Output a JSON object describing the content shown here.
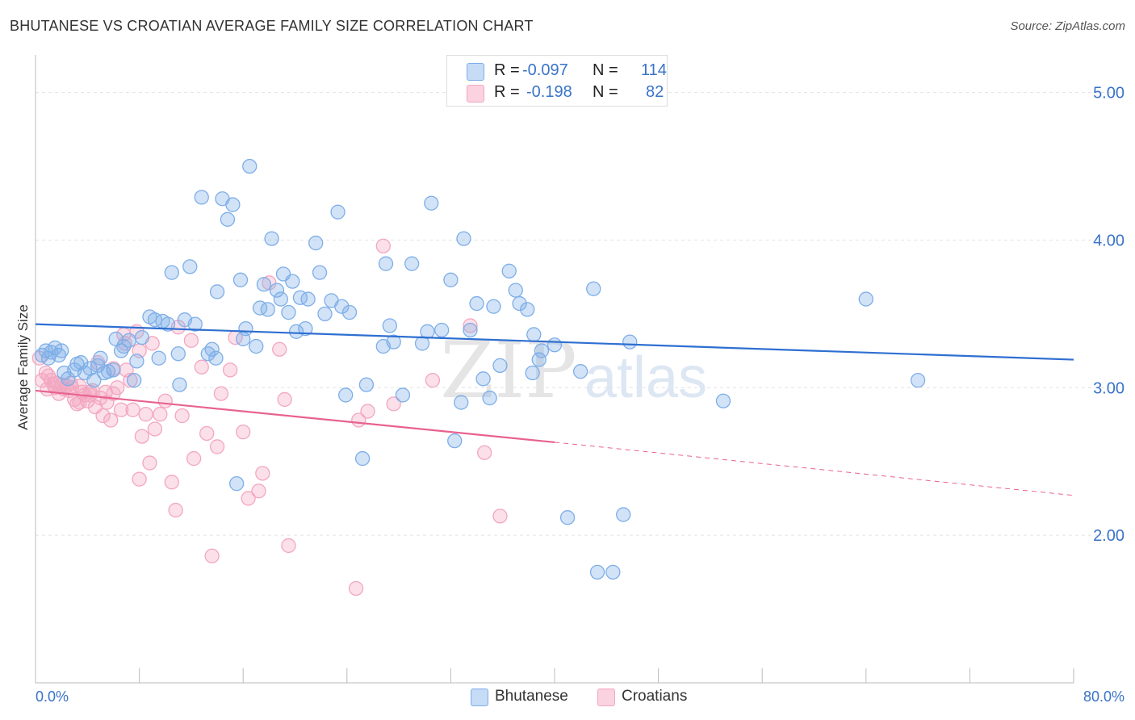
{
  "title": "BHUTANESE VS CROATIAN AVERAGE FAMILY SIZE CORRELATION CHART",
  "source": "Source: ZipAtlas.com",
  "watermark": {
    "zip": "ZIP",
    "atlas": "atlas"
  },
  "legend": {
    "rows": [
      {
        "r_label": "R =",
        "r_value": "-0.097",
        "n_label": "N =",
        "n_value": "114",
        "color": "#7eaee8"
      },
      {
        "r_label": "R =",
        "r_value": "-0.198",
        "n_label": "N =",
        "n_value": "82",
        "color": "#f3a6c0"
      }
    ]
  },
  "bottom_legend": {
    "blue": "Bhutanese",
    "pink": "Croatians"
  },
  "chart_data": {
    "type": "scatter",
    "ylabel": "Average Family Size",
    "x_min_label": "0.0%",
    "x_max_label": "80.0%",
    "xlim": [
      0,
      80
    ],
    "ylim": [
      1.0,
      5.2
    ],
    "y_ticks": [
      {
        "value": 2.0,
        "label": "2.00"
      },
      {
        "value": 3.0,
        "label": "3.00"
      },
      {
        "value": 4.0,
        "label": "4.00"
      },
      {
        "value": 5.0,
        "label": "5.00"
      }
    ],
    "colors": {
      "blue": "#7eaee8",
      "blue_line": "#2e6fd1",
      "pink": "#f3a6c0",
      "pink_line": "#e8628f"
    },
    "series": [
      {
        "name": "Bhutanese",
        "trend": {
          "x0": 0,
          "y0": 3.43,
          "x1": 80,
          "y1": 3.19
        },
        "points": [
          [
            0.5,
            3.22
          ],
          [
            0.8,
            3.25
          ],
          [
            1.0,
            3.2
          ],
          [
            1.2,
            3.24
          ],
          [
            1.5,
            3.27
          ],
          [
            2.0,
            3.25
          ],
          [
            1.8,
            3.22
          ],
          [
            2.2,
            3.1
          ],
          [
            2.5,
            3.06
          ],
          [
            3.0,
            3.12
          ],
          [
            3.2,
            3.16
          ],
          [
            3.5,
            3.17
          ],
          [
            3.8,
            3.1
          ],
          [
            4.2,
            3.13
          ],
          [
            4.5,
            3.05
          ],
          [
            4.8,
            3.15
          ],
          [
            5.0,
            3.2
          ],
          [
            5.3,
            3.1
          ],
          [
            5.6,
            3.11
          ],
          [
            6.0,
            3.12
          ],
          [
            6.2,
            3.33
          ],
          [
            6.6,
            3.25
          ],
          [
            6.8,
            3.28
          ],
          [
            7.2,
            3.32
          ],
          [
            7.6,
            3.05
          ],
          [
            7.8,
            3.18
          ],
          [
            8.2,
            3.34
          ],
          [
            8.8,
            3.48
          ],
          [
            9.2,
            3.46
          ],
          [
            9.8,
            3.45
          ],
          [
            10.2,
            3.43
          ],
          [
            9.5,
            3.2
          ],
          [
            10.5,
            3.78
          ],
          [
            11.1,
            3.02
          ],
          [
            11.0,
            3.23
          ],
          [
            11.5,
            3.46
          ],
          [
            11.9,
            3.82
          ],
          [
            12.3,
            3.43
          ],
          [
            12.8,
            4.29
          ],
          [
            13.3,
            3.23
          ],
          [
            13.6,
            3.26
          ],
          [
            13.9,
            3.2
          ],
          [
            14.0,
            3.65
          ],
          [
            14.4,
            4.28
          ],
          [
            14.8,
            4.14
          ],
          [
            15.2,
            4.24
          ],
          [
            15.5,
            2.35
          ],
          [
            15.8,
            3.73
          ],
          [
            16.0,
            3.33
          ],
          [
            16.2,
            3.4
          ],
          [
            16.5,
            4.5
          ],
          [
            17.0,
            3.28
          ],
          [
            17.3,
            3.54
          ],
          [
            17.6,
            3.7
          ],
          [
            17.9,
            3.53
          ],
          [
            18.2,
            4.01
          ],
          [
            18.6,
            3.66
          ],
          [
            18.9,
            3.6
          ],
          [
            19.1,
            3.77
          ],
          [
            19.5,
            3.51
          ],
          [
            19.8,
            3.72
          ],
          [
            20.1,
            3.38
          ],
          [
            20.4,
            3.61
          ],
          [
            20.8,
            3.4
          ],
          [
            21.0,
            3.6
          ],
          [
            21.6,
            3.98
          ],
          [
            21.9,
            3.78
          ],
          [
            22.3,
            3.5
          ],
          [
            22.8,
            3.59
          ],
          [
            23.3,
            4.19
          ],
          [
            23.6,
            3.55
          ],
          [
            23.9,
            2.95
          ],
          [
            24.2,
            3.51
          ],
          [
            25.2,
            2.52
          ],
          [
            25.5,
            3.02
          ],
          [
            26.8,
            3.28
          ],
          [
            27.0,
            3.84
          ],
          [
            27.3,
            3.42
          ],
          [
            27.6,
            3.31
          ],
          [
            28.3,
            2.95
          ],
          [
            29.0,
            3.84
          ],
          [
            29.8,
            3.3
          ],
          [
            30.2,
            3.38
          ],
          [
            30.5,
            4.25
          ],
          [
            31.3,
            3.39
          ],
          [
            32.0,
            3.73
          ],
          [
            32.3,
            2.64
          ],
          [
            32.8,
            2.9
          ],
          [
            33.0,
            4.01
          ],
          [
            33.5,
            3.39
          ],
          [
            34.0,
            3.57
          ],
          [
            34.5,
            3.06
          ],
          [
            35.0,
            2.93
          ],
          [
            35.3,
            3.55
          ],
          [
            35.8,
            3.15
          ],
          [
            36.5,
            3.79
          ],
          [
            37.0,
            3.66
          ],
          [
            37.3,
            3.57
          ],
          [
            37.9,
            3.53
          ],
          [
            38.3,
            3.1
          ],
          [
            38.4,
            3.36
          ],
          [
            38.8,
            3.19
          ],
          [
            39.0,
            3.25
          ],
          [
            40.0,
            3.29
          ],
          [
            41.0,
            2.12
          ],
          [
            42.0,
            3.11
          ],
          [
            43.0,
            3.67
          ],
          [
            43.3,
            1.75
          ],
          [
            44.5,
            1.75
          ],
          [
            45.3,
            2.14
          ],
          [
            45.8,
            3.31
          ],
          [
            53.0,
            2.91
          ],
          [
            64.0,
            3.6
          ],
          [
            68.0,
            3.05
          ]
        ]
      },
      {
        "name": "Croatians",
        "trend": {
          "x0": 0,
          "y0": 2.98,
          "x1": 40,
          "y1": 2.63,
          "dash_x1": 80,
          "dash_y1": 2.27
        },
        "points": [
          [
            0.3,
            3.2
          ],
          [
            0.5,
            3.05
          ],
          [
            0.8,
            3.1
          ],
          [
            1.0,
            3.08
          ],
          [
            1.2,
            3.05
          ],
          [
            1.4,
            3.02
          ],
          [
            1.6,
            3.03
          ],
          [
            1.8,
            2.96
          ],
          [
            2.0,
            3.02
          ],
          [
            2.2,
            2.99
          ],
          [
            2.4,
            3.01
          ],
          [
            2.6,
            2.98
          ],
          [
            2.8,
            3.0
          ],
          [
            3.0,
            2.92
          ],
          [
            3.2,
            2.89
          ],
          [
            3.4,
            2.9
          ],
          [
            3.6,
            2.97
          ],
          [
            3.8,
            2.95
          ],
          [
            4.0,
            2.91
          ],
          [
            4.2,
            2.97
          ],
          [
            4.4,
            2.98
          ],
          [
            4.6,
            2.87
          ],
          [
            4.8,
            3.17
          ],
          [
            5.0,
            2.93
          ],
          [
            5.2,
            2.81
          ],
          [
            5.4,
            2.97
          ],
          [
            5.8,
            2.78
          ],
          [
            6.0,
            3.13
          ],
          [
            6.3,
            3.0
          ],
          [
            6.6,
            2.85
          ],
          [
            6.8,
            3.36
          ],
          [
            7.0,
            3.12
          ],
          [
            7.3,
            3.05
          ],
          [
            7.8,
            3.38
          ],
          [
            8.0,
            2.38
          ],
          [
            8.2,
            2.67
          ],
          [
            8.5,
            2.82
          ],
          [
            8.8,
            2.49
          ],
          [
            9.2,
            2.72
          ],
          [
            9.6,
            2.82
          ],
          [
            10.0,
            2.91
          ],
          [
            10.5,
            2.36
          ],
          [
            10.8,
            2.17
          ],
          [
            11.0,
            3.41
          ],
          [
            11.3,
            2.81
          ],
          [
            12.0,
            3.32
          ],
          [
            12.2,
            2.52
          ],
          [
            12.8,
            3.14
          ],
          [
            13.2,
            2.69
          ],
          [
            13.6,
            1.86
          ],
          [
            14.0,
            2.6
          ],
          [
            14.3,
            2.96
          ],
          [
            15.0,
            3.12
          ],
          [
            15.4,
            3.34
          ],
          [
            16.0,
            2.7
          ],
          [
            16.4,
            2.25
          ],
          [
            17.2,
            2.3
          ],
          [
            17.5,
            2.42
          ],
          [
            18.0,
            3.71
          ],
          [
            18.8,
            3.26
          ],
          [
            19.2,
            2.92
          ],
          [
            19.5,
            1.93
          ],
          [
            24.7,
            1.64
          ],
          [
            24.9,
            2.78
          ],
          [
            25.6,
            2.84
          ],
          [
            26.8,
            3.96
          ],
          [
            27.6,
            2.89
          ],
          [
            30.6,
            3.05
          ],
          [
            33.5,
            3.42
          ],
          [
            34.6,
            2.56
          ],
          [
            35.8,
            2.13
          ],
          [
            5.5,
            2.9
          ],
          [
            6.0,
            2.96
          ],
          [
            6.9,
            3.3
          ],
          [
            8.0,
            3.25
          ],
          [
            9.0,
            3.3
          ],
          [
            4.2,
            2.95
          ],
          [
            3.4,
            3.01
          ],
          [
            2.7,
            3.03
          ],
          [
            1.5,
            3.0
          ],
          [
            0.9,
            2.99
          ],
          [
            7.5,
            2.85
          ]
        ]
      }
    ]
  }
}
